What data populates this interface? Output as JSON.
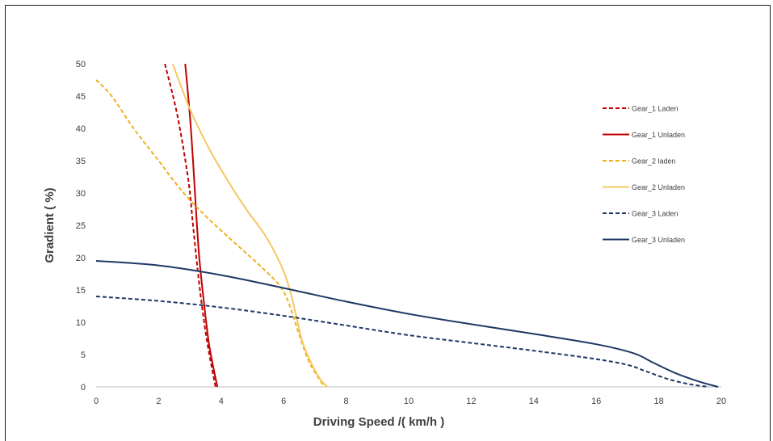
{
  "chart_data": {
    "type": "line",
    "xlabel": "Driving Speed /( km/h )",
    "ylabel": "Gradient ( %)",
    "xlim": [
      0,
      20
    ],
    "ylim": [
      0,
      50
    ],
    "x_ticks": [
      "0",
      "2",
      "4",
      "6",
      "8",
      "10",
      "12",
      "14",
      "16",
      "18",
      "20"
    ],
    "y_ticks": [
      "0",
      "5",
      "10",
      "15",
      "20",
      "25",
      "30",
      "35",
      "40",
      "45",
      "50"
    ],
    "grid": false,
    "legend_position": "top-right",
    "series": [
      {
        "name": "Gear_1 Laden",
        "color": "#c00000",
        "dash": "dashed",
        "points": [
          [
            2.2,
            50
          ],
          [
            2.6,
            42
          ],
          [
            2.95,
            32
          ],
          [
            3.1,
            25
          ],
          [
            3.25,
            18
          ],
          [
            3.4,
            12
          ],
          [
            3.55,
            7
          ],
          [
            3.7,
            3
          ],
          [
            3.82,
            0
          ]
        ]
      },
      {
        "name": "Gear_1 Unladen",
        "color": "#c00000",
        "dash": "solid",
        "points": [
          [
            2.85,
            50
          ],
          [
            3.0,
            42
          ],
          [
            3.1,
            35
          ],
          [
            3.2,
            27
          ],
          [
            3.3,
            20
          ],
          [
            3.45,
            13
          ],
          [
            3.6,
            7
          ],
          [
            3.75,
            3
          ],
          [
            3.88,
            0
          ]
        ]
      },
      {
        "name": "Gear_2 laden",
        "color": "#f0b020",
        "dash": "dashed",
        "points": [
          [
            0,
            47.5
          ],
          [
            0.5,
            45
          ],
          [
            1.2,
            40
          ],
          [
            2.0,
            35
          ],
          [
            2.8,
            30
          ],
          [
            3.6,
            26
          ],
          [
            4.5,
            22
          ],
          [
            5.3,
            18.5
          ],
          [
            5.9,
            15.5
          ],
          [
            6.2,
            12.5
          ],
          [
            6.5,
            8
          ],
          [
            6.8,
            4
          ],
          [
            7.1,
            1.5
          ],
          [
            7.3,
            0
          ]
        ]
      },
      {
        "name": "Gear_2 Unladen",
        "color": "#f5c860",
        "dash": "solid",
        "points": [
          [
            2.45,
            50
          ],
          [
            3.0,
            43
          ],
          [
            3.6,
            37
          ],
          [
            4.2,
            32
          ],
          [
            4.8,
            27.5
          ],
          [
            5.4,
            23.5
          ],
          [
            5.9,
            19
          ],
          [
            6.2,
            15
          ],
          [
            6.4,
            11
          ],
          [
            6.6,
            7
          ],
          [
            6.9,
            3.5
          ],
          [
            7.2,
            1
          ],
          [
            7.4,
            0
          ]
        ]
      },
      {
        "name": "Gear_3 Laden",
        "color": "#1f3864",
        "dash": "dashed",
        "points": [
          [
            0,
            14
          ],
          [
            2,
            13.3
          ],
          [
            4,
            12.3
          ],
          [
            6,
            11
          ],
          [
            8,
            9.5
          ],
          [
            10,
            8
          ],
          [
            12,
            6.8
          ],
          [
            14,
            5.6
          ],
          [
            16,
            4.3
          ],
          [
            17,
            3.4
          ],
          [
            17.6,
            2.4
          ],
          [
            18.3,
            1.2
          ],
          [
            19,
            0.4
          ],
          [
            19.6,
            0
          ]
        ]
      },
      {
        "name": "Gear_3 Unladen",
        "color": "#1f3864",
        "dash": "solid",
        "points": [
          [
            0,
            19.5
          ],
          [
            2,
            18.8
          ],
          [
            4,
            17.3
          ],
          [
            6,
            15.3
          ],
          [
            8,
            13.2
          ],
          [
            10,
            11.3
          ],
          [
            12,
            9.7
          ],
          [
            14,
            8.2
          ],
          [
            16,
            6.6
          ],
          [
            17.2,
            5.2
          ],
          [
            17.8,
            3.8
          ],
          [
            18.5,
            2.2
          ],
          [
            19.3,
            0.8
          ],
          [
            19.9,
            0
          ]
        ]
      }
    ]
  }
}
